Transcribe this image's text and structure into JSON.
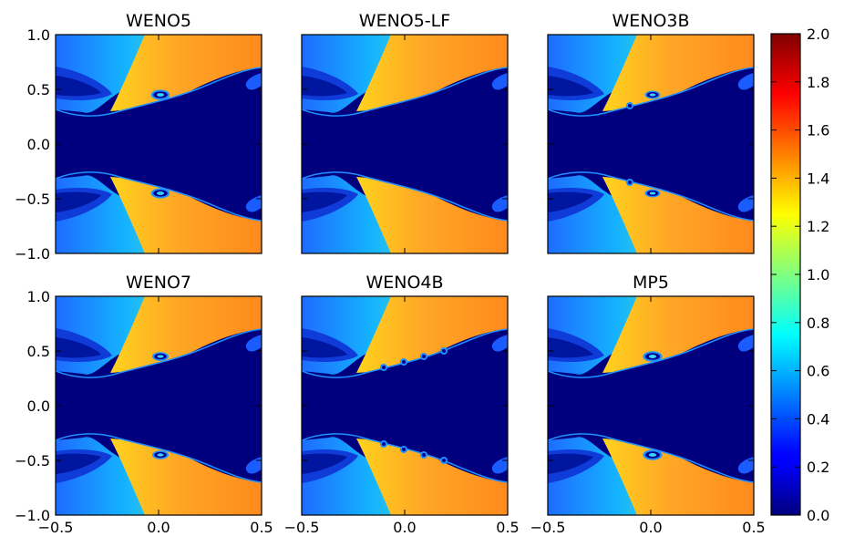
{
  "chart_data": {
    "type": "heatmap",
    "panels": [
      {
        "title": "WENO5",
        "roll_amp": 0.42,
        "waves": 0,
        "show_ylabels": true,
        "show_xlabels": false
      },
      {
        "title": "WENO5-LF",
        "roll_amp": 0.0,
        "waves": 0,
        "show_ylabels": false,
        "show_xlabels": false
      },
      {
        "title": "WENO3B",
        "roll_amp": 0.25,
        "waves": 1,
        "show_ylabels": false,
        "show_xlabels": false
      },
      {
        "title": "WENO7",
        "roll_amp": 0.3,
        "waves": 0,
        "show_ylabels": true,
        "show_xlabels": true
      },
      {
        "title": "WENO4B",
        "roll_amp": 0.0,
        "waves": 4,
        "show_ylabels": false,
        "show_xlabels": true
      },
      {
        "title": "MP5",
        "roll_amp": 0.45,
        "waves": 0,
        "show_ylabels": false,
        "show_xlabels": true
      }
    ],
    "x_range": [
      -0.5,
      0.5
    ],
    "y_range": [
      -1.0,
      1.0
    ],
    "x_ticks": [
      "−0.5",
      "0.0",
      "0.5"
    ],
    "y_ticks": [
      "1.0",
      "0.5",
      "0.0",
      "−0.5",
      "−1.0"
    ],
    "colorbar": {
      "range": [
        0.0,
        2.0
      ],
      "colormap": "jet",
      "ticks": [
        "2.0",
        "1.8",
        "1.6",
        "1.4",
        "1.2",
        "1.0",
        "0.8",
        "0.6",
        "0.4",
        "0.2",
        "0.0"
      ]
    },
    "grid": false
  }
}
